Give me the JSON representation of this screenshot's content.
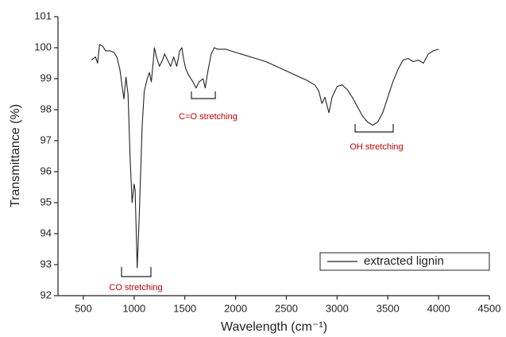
{
  "chart_data": {
    "type": "line",
    "xlabel": "Wavelength (cm⁻¹)",
    "ylabel": "Transmittance (%)",
    "xlim": [
      250,
      4500
    ],
    "ylim": [
      92,
      101
    ],
    "xticks": [
      500,
      1000,
      1500,
      2000,
      2500,
      3000,
      3500,
      4000,
      4500
    ],
    "yticks": [
      92,
      93,
      94,
      95,
      96,
      97,
      98,
      99,
      100,
      101
    ],
    "legend": "lower right",
    "annotations": [
      "CO stretching",
      "C=O stretching",
      "OH stretching"
    ],
    "x": [
      580,
      620,
      640,
      660,
      690,
      720,
      760,
      800,
      830,
      860,
      880,
      900,
      920,
      940,
      960,
      980,
      1000,
      1010,
      1030,
      1050,
      1080,
      1100,
      1130,
      1150,
      1170,
      1190,
      1200,
      1220,
      1250,
      1280,
      1300,
      1330,
      1360,
      1390,
      1420,
      1450,
      1470,
      1490,
      1510,
      1540,
      1580,
      1610,
      1640,
      1680,
      1700,
      1730,
      1760,
      1790,
      1820,
      1900,
      2000,
      2100,
      2200,
      2300,
      2400,
      2500,
      2600,
      2700,
      2780,
      2820,
      2850,
      2880,
      2920,
      2950,
      3000,
      3050,
      3100,
      3150,
      3200,
      3250,
      3300,
      3350,
      3400,
      3450,
      3500,
      3550,
      3600,
      3650,
      3700,
      3750,
      3800,
      3850,
      3900,
      3950,
      4000
    ],
    "series": [
      {
        "name": "extracted lignin",
        "color": "#222222",
        "values": [
          99.6,
          99.7,
          99.5,
          100.1,
          100.05,
          99.9,
          99.9,
          99.85,
          99.7,
          99.3,
          98.8,
          98.35,
          99.05,
          98.5,
          96.5,
          95.0,
          95.6,
          95.4,
          92.9,
          94.5,
          97.5,
          98.6,
          99.0,
          99.2,
          98.9,
          99.6,
          100.0,
          99.7,
          99.4,
          99.6,
          99.8,
          99.6,
          99.4,
          99.7,
          99.4,
          99.9,
          100.0,
          99.6,
          99.3,
          99.1,
          98.9,
          98.7,
          98.9,
          99.0,
          98.7,
          99.3,
          99.8,
          100.0,
          99.95,
          99.95,
          99.85,
          99.75,
          99.65,
          99.55,
          99.4,
          99.25,
          99.1,
          98.95,
          98.8,
          98.6,
          98.2,
          98.4,
          97.9,
          98.4,
          98.75,
          98.8,
          98.65,
          98.4,
          98.1,
          97.8,
          97.6,
          97.5,
          97.6,
          97.9,
          98.4,
          98.9,
          99.3,
          99.6,
          99.65,
          99.55,
          99.6,
          99.5,
          99.8,
          99.9,
          99.95
        ]
      }
    ]
  }
}
